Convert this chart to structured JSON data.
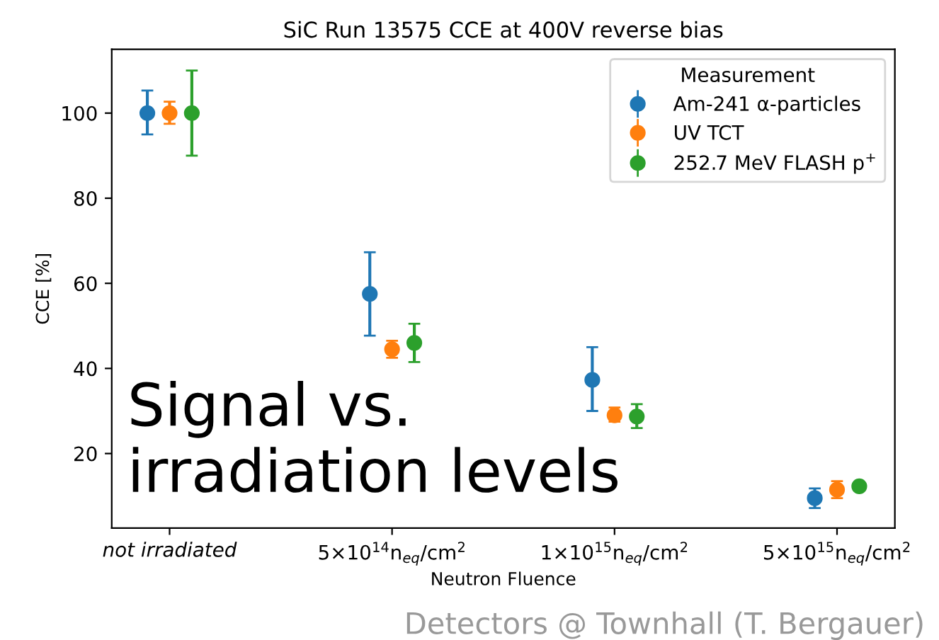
{
  "chart_data": {
    "type": "scatter",
    "title": "SiC Run 13575 CCE at 400V reverse bias",
    "xlabel": "Neutron Fluence",
    "ylabel": "CCE [%]",
    "legend_title": "Measurement",
    "categories": [
      "not irradiated",
      "5×10$^{14}$n$_{eq}$/cm$^{2}$",
      "1×10$^{15}$n$_{eq}$/cm$^{2}$",
      "5×10$^{15}$n$_{eq}$/cm$^{2}$"
    ],
    "series": [
      {
        "name": "Am-241 α-particles",
        "color": "#1f77b4",
        "values": [
          100,
          57.5,
          37.3,
          9.5
        ],
        "errors": [
          [
            95,
            105.3
          ],
          [
            47.7,
            67.3
          ],
          [
            30,
            45
          ],
          [
            7.2,
            11.8
          ]
        ]
      },
      {
        "name": "UV TCT",
        "color": "#ff7f0e",
        "values": [
          100,
          44.5,
          29,
          11.5
        ],
        "errors": [
          [
            97.5,
            102.7
          ],
          [
            42.5,
            46.5
          ],
          [
            27.5,
            30.8
          ],
          [
            9.5,
            13.5
          ]
        ]
      },
      {
        "name": "252.7 MeV FLASH p$^{+}$",
        "color": "#2ca02c",
        "values": [
          100,
          46,
          28.7,
          12.3
        ],
        "errors": [
          [
            90,
            110
          ],
          [
            41.5,
            50.5
          ],
          [
            26,
            31.6
          ],
          [
            11.3,
            13
          ]
        ]
      }
    ],
    "ylim": [
      2.5,
      115
    ],
    "yticks": [
      20,
      40,
      60,
      80,
      100
    ],
    "grid": false,
    "legend": "top right",
    "marker": "circle",
    "annotations": [
      "Signal vs.\nirradiation levels",
      "Detectors @ Townhall (T. Bergauer)"
    ]
  }
}
